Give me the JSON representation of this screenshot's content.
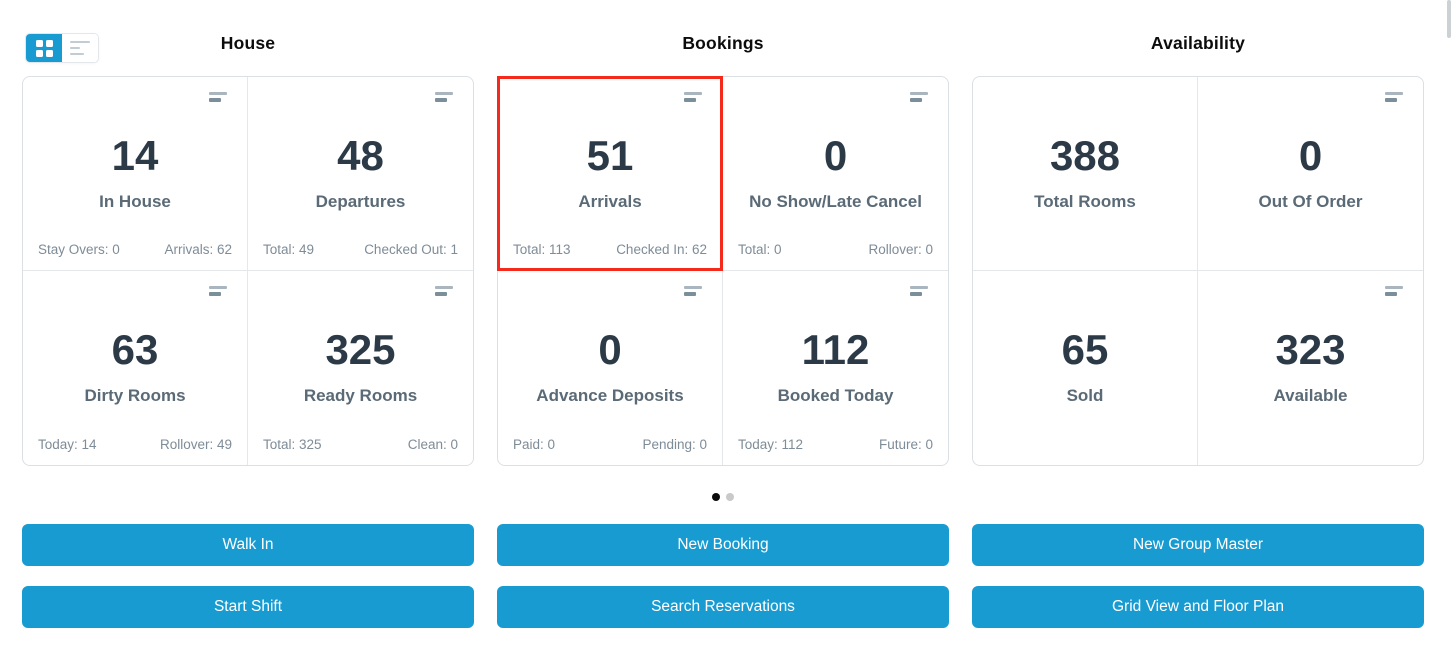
{
  "colors": {
    "accent": "#189bd1",
    "highlight": "#f5291c",
    "active_dot": "#0b0b0b"
  },
  "view_toggle": {
    "grid_active": true,
    "list_active": false
  },
  "pagination": {
    "total_pages": 2,
    "active_page": 1
  },
  "sections": [
    {
      "title": "House",
      "cards": [
        {
          "value": "14",
          "label": "In House",
          "stat_left": "Stay Overs: 0",
          "stat_right": "Arrivals: 62"
        },
        {
          "value": "48",
          "label": "Departures",
          "stat_left": "Total: 49",
          "stat_right": "Checked Out: 1"
        },
        {
          "value": "63",
          "label": "Dirty Rooms",
          "stat_left": "Today: 14",
          "stat_right": "Rollover: 49"
        },
        {
          "value": "325",
          "label": "Ready Rooms",
          "stat_left": "Total: 325",
          "stat_right": "Clean: 0"
        }
      ],
      "buttons": [
        "Walk In",
        "Start Shift"
      ]
    },
    {
      "title": "Bookings",
      "cards": [
        {
          "value": "51",
          "label": "Arrivals",
          "stat_left": "Total: 113",
          "stat_right": "Checked In: 62",
          "highlighted": true
        },
        {
          "value": "0",
          "label": "No Show/Late Cancel",
          "stat_left": "Total: 0",
          "stat_right": "Rollover: 0"
        },
        {
          "value": "0",
          "label": "Advance Deposits",
          "stat_left": "Paid: 0",
          "stat_right": "Pending: 0"
        },
        {
          "value": "112",
          "label": "Booked Today",
          "stat_left": "Today: 112",
          "stat_right": "Future: 0"
        }
      ],
      "buttons": [
        "New Booking",
        "Search Reservations"
      ]
    },
    {
      "title": "Availability",
      "cards": [
        {
          "value": "388",
          "label": "Total Rooms"
        },
        {
          "value": "0",
          "label": "Out Of Order"
        },
        {
          "value": "65",
          "label": "Sold"
        },
        {
          "value": "323",
          "label": "Available"
        }
      ],
      "buttons": [
        "New Group Master",
        "Grid View and Floor Plan"
      ]
    }
  ]
}
